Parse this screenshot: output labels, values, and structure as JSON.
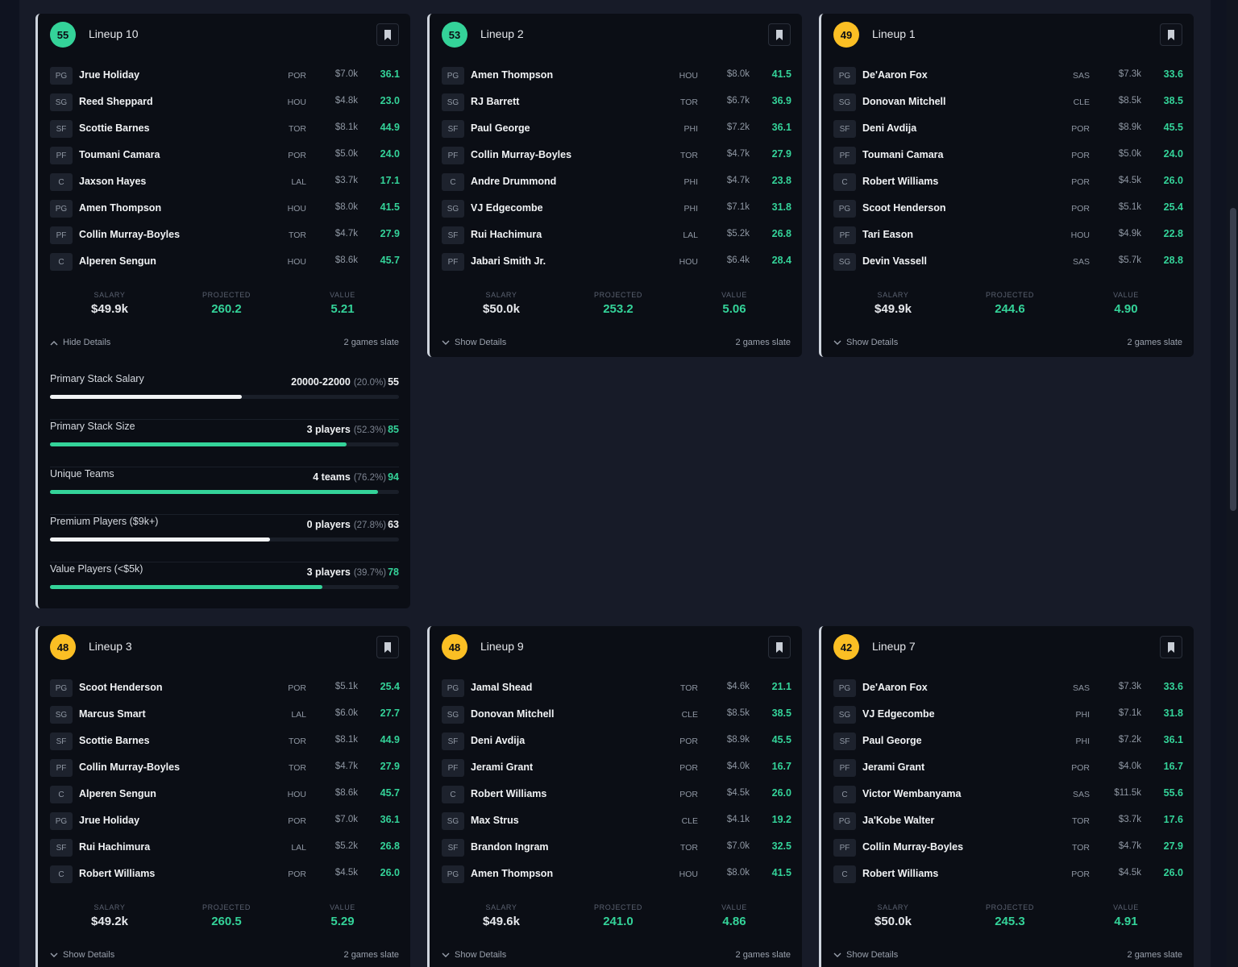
{
  "common": {
    "salary_label": "SALARY",
    "projected_label": "PROJECTED",
    "value_label": "VALUE",
    "slate": "2 games slate"
  },
  "colors": {
    "badge_green": "#34d399",
    "badge_yellow": "#fbbf24",
    "points_green": "#34d399",
    "bar_white": "#f1f3f5"
  },
  "lineups": [
    {
      "score": "55",
      "badge": "green",
      "title": "Lineup 10",
      "players": [
        {
          "pos": "PG",
          "name": "Jrue Holiday",
          "team": "POR",
          "salary": "$7.0k",
          "pts": "36.1"
        },
        {
          "pos": "SG",
          "name": "Reed Sheppard",
          "team": "HOU",
          "salary": "$4.8k",
          "pts": "23.0"
        },
        {
          "pos": "SF",
          "name": "Scottie Barnes",
          "team": "TOR",
          "salary": "$8.1k",
          "pts": "44.9"
        },
        {
          "pos": "PF",
          "name": "Toumani Camara",
          "team": "POR",
          "salary": "$5.0k",
          "pts": "24.0"
        },
        {
          "pos": "C",
          "name": "Jaxson Hayes",
          "team": "LAL",
          "salary": "$3.7k",
          "pts": "17.1"
        },
        {
          "pos": "PG",
          "name": "Amen Thompson",
          "team": "HOU",
          "salary": "$8.0k",
          "pts": "41.5"
        },
        {
          "pos": "PF",
          "name": "Collin Murray-Boyles",
          "team": "TOR",
          "salary": "$4.7k",
          "pts": "27.9"
        },
        {
          "pos": "C",
          "name": "Alperen Sengun",
          "team": "HOU",
          "salary": "$8.6k",
          "pts": "45.7"
        }
      ],
      "salary": "$49.9k",
      "projected": "260.2",
      "value": "5.21",
      "toggle": "Hide Details",
      "metrics": [
        {
          "label": "Primary Stack Salary",
          "value": "20000-22000",
          "pct": "(20.0%)",
          "score": "55",
          "fill": 0.55,
          "color": "white"
        },
        {
          "label": "Primary Stack Size",
          "value": "3 players",
          "pct": "(52.3%)",
          "score": "85",
          "fill": 0.85,
          "color": "green"
        },
        {
          "label": "Unique Teams",
          "value": "4 teams",
          "pct": "(76.2%)",
          "score": "94",
          "fill": 0.94,
          "color": "green"
        },
        {
          "label": "Premium Players ($9k+)",
          "value": "0 players",
          "pct": "(27.8%)",
          "score": "63",
          "fill": 0.63,
          "color": "white"
        },
        {
          "label": "Value Players (<$5k)",
          "value": "3 players",
          "pct": "(39.7%)",
          "score": "78",
          "fill": 0.78,
          "color": "green"
        }
      ]
    },
    {
      "score": "53",
      "badge": "green",
      "title": "Lineup 2",
      "players": [
        {
          "pos": "PG",
          "name": "Amen Thompson",
          "team": "HOU",
          "salary": "$8.0k",
          "pts": "41.5"
        },
        {
          "pos": "SG",
          "name": "RJ Barrett",
          "team": "TOR",
          "salary": "$6.7k",
          "pts": "36.9"
        },
        {
          "pos": "SF",
          "name": "Paul George",
          "team": "PHI",
          "salary": "$7.2k",
          "pts": "36.1"
        },
        {
          "pos": "PF",
          "name": "Collin Murray-Boyles",
          "team": "TOR",
          "salary": "$4.7k",
          "pts": "27.9"
        },
        {
          "pos": "C",
          "name": "Andre Drummond",
          "team": "PHI",
          "salary": "$4.7k",
          "pts": "23.8"
        },
        {
          "pos": "SG",
          "name": "VJ Edgecombe",
          "team": "PHI",
          "salary": "$7.1k",
          "pts": "31.8"
        },
        {
          "pos": "SF",
          "name": "Rui Hachimura",
          "team": "LAL",
          "salary": "$5.2k",
          "pts": "26.8"
        },
        {
          "pos": "PF",
          "name": "Jabari Smith Jr.",
          "team": "HOU",
          "salary": "$6.4k",
          "pts": "28.4"
        }
      ],
      "salary": "$50.0k",
      "projected": "253.2",
      "value": "5.06",
      "toggle": "Show Details"
    },
    {
      "score": "49",
      "badge": "yellow",
      "title": "Lineup 1",
      "players": [
        {
          "pos": "PG",
          "name": "De'Aaron Fox",
          "team": "SAS",
          "salary": "$7.3k",
          "pts": "33.6"
        },
        {
          "pos": "SG",
          "name": "Donovan Mitchell",
          "team": "CLE",
          "salary": "$8.5k",
          "pts": "38.5"
        },
        {
          "pos": "SF",
          "name": "Deni Avdija",
          "team": "POR",
          "salary": "$8.9k",
          "pts": "45.5"
        },
        {
          "pos": "PF",
          "name": "Toumani Camara",
          "team": "POR",
          "salary": "$5.0k",
          "pts": "24.0"
        },
        {
          "pos": "C",
          "name": "Robert Williams",
          "team": "POR",
          "salary": "$4.5k",
          "pts": "26.0"
        },
        {
          "pos": "PG",
          "name": "Scoot Henderson",
          "team": "POR",
          "salary": "$5.1k",
          "pts": "25.4"
        },
        {
          "pos": "PF",
          "name": "Tari Eason",
          "team": "HOU",
          "salary": "$4.9k",
          "pts": "22.8"
        },
        {
          "pos": "SG",
          "name": "Devin Vassell",
          "team": "SAS",
          "salary": "$5.7k",
          "pts": "28.8"
        }
      ],
      "salary": "$49.9k",
      "projected": "244.6",
      "value": "4.90",
      "toggle": "Show Details"
    },
    {
      "score": "48",
      "badge": "yellow",
      "title": "Lineup 3",
      "players": [
        {
          "pos": "PG",
          "name": "Scoot Henderson",
          "team": "POR",
          "salary": "$5.1k",
          "pts": "25.4"
        },
        {
          "pos": "SG",
          "name": "Marcus Smart",
          "team": "LAL",
          "salary": "$6.0k",
          "pts": "27.7"
        },
        {
          "pos": "SF",
          "name": "Scottie Barnes",
          "team": "TOR",
          "salary": "$8.1k",
          "pts": "44.9"
        },
        {
          "pos": "PF",
          "name": "Collin Murray-Boyles",
          "team": "TOR",
          "salary": "$4.7k",
          "pts": "27.9"
        },
        {
          "pos": "C",
          "name": "Alperen Sengun",
          "team": "HOU",
          "salary": "$8.6k",
          "pts": "45.7"
        },
        {
          "pos": "PG",
          "name": "Jrue Holiday",
          "team": "POR",
          "salary": "$7.0k",
          "pts": "36.1"
        },
        {
          "pos": "SF",
          "name": "Rui Hachimura",
          "team": "LAL",
          "salary": "$5.2k",
          "pts": "26.8"
        },
        {
          "pos": "C",
          "name": "Robert Williams",
          "team": "POR",
          "salary": "$4.5k",
          "pts": "26.0"
        }
      ],
      "salary": "$49.2k",
      "projected": "260.5",
      "value": "5.29",
      "toggle": "Show Details"
    },
    {
      "score": "48",
      "badge": "yellow",
      "title": "Lineup 9",
      "players": [
        {
          "pos": "PG",
          "name": "Jamal Shead",
          "team": "TOR",
          "salary": "$4.6k",
          "pts": "21.1"
        },
        {
          "pos": "SG",
          "name": "Donovan Mitchell",
          "team": "CLE",
          "salary": "$8.5k",
          "pts": "38.5"
        },
        {
          "pos": "SF",
          "name": "Deni Avdija",
          "team": "POR",
          "salary": "$8.9k",
          "pts": "45.5"
        },
        {
          "pos": "PF",
          "name": "Jerami Grant",
          "team": "POR",
          "salary": "$4.0k",
          "pts": "16.7"
        },
        {
          "pos": "C",
          "name": "Robert Williams",
          "team": "POR",
          "salary": "$4.5k",
          "pts": "26.0"
        },
        {
          "pos": "SG",
          "name": "Max Strus",
          "team": "CLE",
          "salary": "$4.1k",
          "pts": "19.2"
        },
        {
          "pos": "SF",
          "name": "Brandon Ingram",
          "team": "TOR",
          "salary": "$7.0k",
          "pts": "32.5"
        },
        {
          "pos": "PG",
          "name": "Amen Thompson",
          "team": "HOU",
          "salary": "$8.0k",
          "pts": "41.5"
        }
      ],
      "salary": "$49.6k",
      "projected": "241.0",
      "value": "4.86",
      "toggle": "Show Details"
    },
    {
      "score": "42",
      "badge": "yellow",
      "title": "Lineup 7",
      "players": [
        {
          "pos": "PG",
          "name": "De'Aaron Fox",
          "team": "SAS",
          "salary": "$7.3k",
          "pts": "33.6"
        },
        {
          "pos": "SG",
          "name": "VJ Edgecombe",
          "team": "PHI",
          "salary": "$7.1k",
          "pts": "31.8"
        },
        {
          "pos": "SF",
          "name": "Paul George",
          "team": "PHI",
          "salary": "$7.2k",
          "pts": "36.1"
        },
        {
          "pos": "PF",
          "name": "Jerami Grant",
          "team": "POR",
          "salary": "$4.0k",
          "pts": "16.7"
        },
        {
          "pos": "C",
          "name": "Victor Wembanyama",
          "team": "SAS",
          "salary": "$11.5k",
          "pts": "55.6"
        },
        {
          "pos": "PG",
          "name": "Ja'Kobe Walter",
          "team": "TOR",
          "salary": "$3.7k",
          "pts": "17.6"
        },
        {
          "pos": "PF",
          "name": "Collin Murray-Boyles",
          "team": "TOR",
          "salary": "$4.7k",
          "pts": "27.9"
        },
        {
          "pos": "C",
          "name": "Robert Williams",
          "team": "POR",
          "salary": "$4.5k",
          "pts": "26.0"
        }
      ],
      "salary": "$50.0k",
      "projected": "245.3",
      "value": "4.91",
      "toggle": "Show Details"
    }
  ]
}
